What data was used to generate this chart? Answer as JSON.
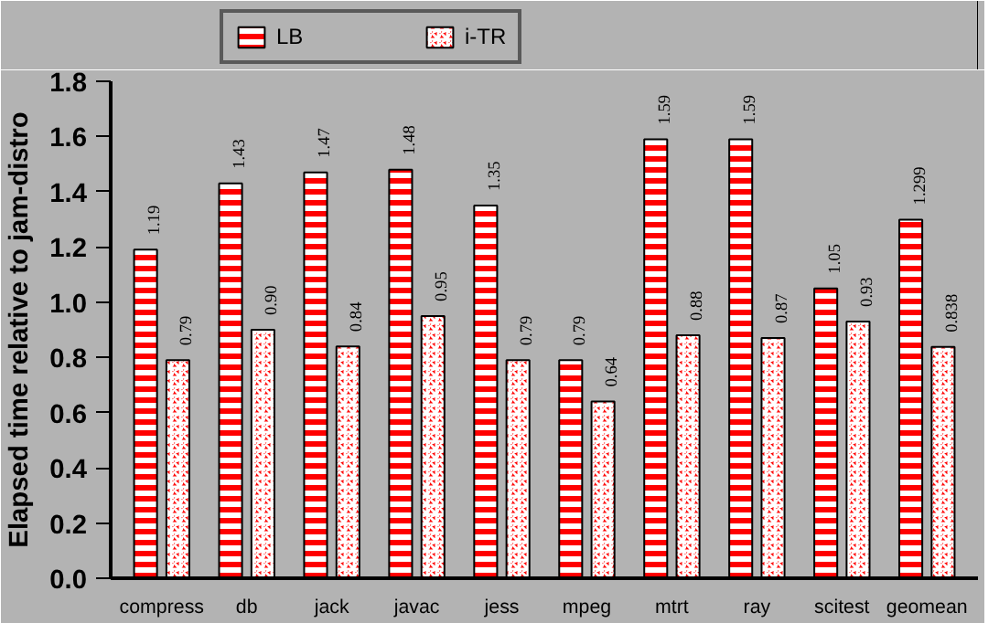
{
  "chart_data": {
    "type": "bar",
    "ylabel": "Elapsed time relative to jam-distro",
    "categories": [
      "compress",
      "db",
      "jack",
      "javac",
      "jess",
      "mpeg",
      "mtrt",
      "ray",
      "scitest",
      "geomean"
    ],
    "series": [
      {
        "name": "LB",
        "color": "#ff0000",
        "values": [
          1.19,
          1.43,
          1.47,
          1.48,
          1.35,
          0.79,
          1.59,
          1.59,
          1.05,
          1.299
        ],
        "value_labels": [
          "1.19",
          "1.43",
          "1.47",
          "1.48",
          "1.35",
          "0.79",
          "1.59",
          "1.59",
          "1.05",
          "1.299"
        ]
      },
      {
        "name": "i-TR",
        "color": "#ff0000",
        "values": [
          0.79,
          0.9,
          0.84,
          0.95,
          0.79,
          0.64,
          0.88,
          0.87,
          0.93,
          0.838
        ],
        "value_labels": [
          "0.79",
          "0.90",
          "0.84",
          "0.95",
          "0.79",
          "0.64",
          "0.88",
          "0.87",
          "0.93",
          "0.838"
        ]
      }
    ],
    "ylim": [
      0,
      1.8
    ],
    "yticks": [
      {
        "value": 0,
        "label": "0.0"
      },
      0.2,
      0.4,
      0.6,
      0.8,
      {
        "value": 1,
        "label": "1.0"
      },
      1.2,
      1.4,
      1.6,
      1.8
    ],
    "grid": false,
    "legend": "top left"
  }
}
